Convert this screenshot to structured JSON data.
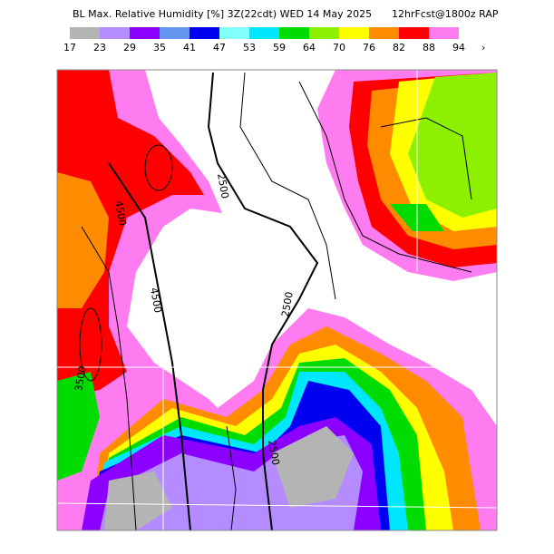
{
  "header": {
    "title": "BL Max. Relative Humidity [%] 3Z(22cdt) WED 14 May 2025",
    "source": "12hrFcst@1800z RAP"
  },
  "legend": {
    "labels": [
      "17",
      "23",
      "29",
      "35",
      "41",
      "47",
      "53",
      "59",
      "64",
      "70",
      "76",
      "82",
      "88",
      "94"
    ],
    "colors": [
      "#b4b4b4",
      "#b48cff",
      "#8c00ff",
      "#6496f0",
      "#0000f0",
      "#82ffff",
      "#00e6ff",
      "#00dc00",
      "#8cf000",
      "#ffff00",
      "#ff8c00",
      "#ff0000",
      "#ff7cf0"
    ],
    "more": "›"
  },
  "contour_labels": [
    "2500",
    "4500",
    "4500",
    "2500",
    "2500",
    "3500"
  ]
}
